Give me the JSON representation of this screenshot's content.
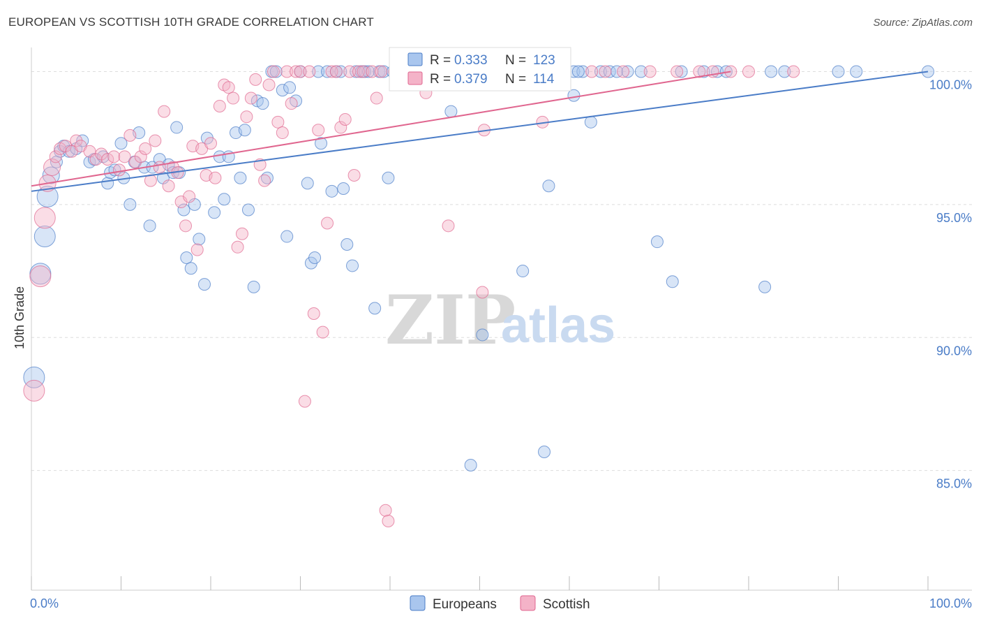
{
  "title": "EUROPEAN VS SCOTTISH 10TH GRADE CORRELATION CHART",
  "source": "Source: ZipAtlas.com",
  "watermark": {
    "zip": "ZIP",
    "atlas": "atlas"
  },
  "colors": {
    "europeans": "#4a7cc7",
    "europeans_fill": "#a9c6ee",
    "scottish": "#e0668f",
    "scottish_fill": "#f4b3c8",
    "grid": "#dddddd",
    "axis_text": "#4a7cc7"
  },
  "chart_data": {
    "type": "scatter",
    "xlabel": "",
    "ylabel": "10th Grade",
    "xlim": [
      0,
      100
    ],
    "ylim": [
      80.5,
      100.8
    ],
    "x_ticks": [
      {
        "value": 0,
        "label": "0.0%"
      },
      {
        "value": 100,
        "label": "100.0%"
      }
    ],
    "y_ticks": [
      {
        "value": 100,
        "label": "100.0%"
      },
      {
        "value": 95,
        "label": "95.0%"
      },
      {
        "value": 90,
        "label": "90.0%"
      },
      {
        "value": 85,
        "label": "85.0%"
      }
    ],
    "legend": {
      "placement": "top-center",
      "rows": [
        {
          "series": "Europeans",
          "r_label": "R =",
          "r_value": "0.333",
          "n_label": "N =",
          "n_value": "123"
        },
        {
          "series": "Scottish",
          "r_label": "R =",
          "r_value": "0.379",
          "n_label": "N =",
          "n_value": "114"
        }
      ]
    },
    "series": [
      {
        "name": "Europeans",
        "trend": {
          "x": [
            0,
            100
          ],
          "y": [
            95.5,
            100
          ]
        },
        "points": [
          [
            0.3,
            88.5,
            3
          ],
          [
            1.0,
            92.4,
            3
          ],
          [
            1.5,
            93.8,
            3
          ],
          [
            1.8,
            95.3,
            3
          ],
          [
            2.2,
            96.1,
            2
          ],
          [
            2.8,
            96.6,
            1
          ],
          [
            3.2,
            97.0,
            1
          ],
          [
            3.6,
            97.2,
            1
          ],
          [
            4.2,
            97.0,
            1
          ],
          [
            5.0,
            97.1,
            1
          ],
          [
            5.7,
            97.4,
            1
          ],
          [
            6.5,
            96.6,
            1
          ],
          [
            7.0,
            96.7,
            1
          ],
          [
            8.0,
            96.8,
            1
          ],
          [
            8.5,
            95.8,
            1
          ],
          [
            8.8,
            96.2,
            1
          ],
          [
            9.3,
            96.3,
            1
          ],
          [
            10.0,
            97.3,
            1
          ],
          [
            10.3,
            96.0,
            1
          ],
          [
            11.0,
            95.0,
            1
          ],
          [
            11.5,
            96.6,
            1
          ],
          [
            12.0,
            97.7,
            1
          ],
          [
            12.6,
            96.4,
            1
          ],
          [
            13.2,
            94.2,
            1
          ],
          [
            13.5,
            96.4,
            1
          ],
          [
            14.3,
            96.7,
            1
          ],
          [
            14.7,
            96.0,
            1
          ],
          [
            15.3,
            96.5,
            1
          ],
          [
            15.8,
            96.2,
            1
          ],
          [
            16.2,
            97.9,
            1
          ],
          [
            16.5,
            96.2,
            1
          ],
          [
            17.0,
            94.8,
            1
          ],
          [
            17.3,
            93.0,
            1
          ],
          [
            17.8,
            92.6,
            1
          ],
          [
            18.2,
            95.0,
            1
          ],
          [
            18.7,
            93.7,
            1
          ],
          [
            19.3,
            92.0,
            1
          ],
          [
            19.6,
            97.5,
            1
          ],
          [
            20.4,
            94.7,
            1
          ],
          [
            21.0,
            96.8,
            1
          ],
          [
            21.5,
            95.2,
            1
          ],
          [
            22.0,
            96.8,
            1
          ],
          [
            22.8,
            97.7,
            1
          ],
          [
            23.3,
            96.0,
            1
          ],
          [
            23.8,
            97.8,
            1
          ],
          [
            24.2,
            94.8,
            1
          ],
          [
            24.8,
            91.9,
            1
          ],
          [
            25.2,
            98.9,
            1
          ],
          [
            25.8,
            98.8,
            1
          ],
          [
            26.3,
            96.0,
            1
          ],
          [
            26.8,
            100.0,
            1
          ],
          [
            27.3,
            100.0,
            1
          ],
          [
            28.0,
            99.3,
            1
          ],
          [
            28.5,
            93.8,
            1
          ],
          [
            28.8,
            99.4,
            1
          ],
          [
            29.5,
            98.9,
            1
          ],
          [
            30.0,
            100.0,
            1
          ],
          [
            30.8,
            95.8,
            1
          ],
          [
            31.2,
            92.8,
            1
          ],
          [
            31.6,
            93.0,
            1
          ],
          [
            32.0,
            100.0,
            1
          ],
          [
            32.3,
            97.3,
            1
          ],
          [
            33.0,
            100.0,
            1
          ],
          [
            33.5,
            95.5,
            1
          ],
          [
            34.0,
            100.0,
            1
          ],
          [
            34.5,
            100.0,
            1
          ],
          [
            34.8,
            95.6,
            1
          ],
          [
            35.2,
            93.5,
            1
          ],
          [
            35.8,
            92.7,
            1
          ],
          [
            36.2,
            100.0,
            1
          ],
          [
            36.8,
            100.0,
            1
          ],
          [
            37.2,
            100.0,
            1
          ],
          [
            37.6,
            100.0,
            1
          ],
          [
            38.3,
            91.1,
            1
          ],
          [
            38.8,
            100.0,
            1
          ],
          [
            39.3,
            100.0,
            1
          ],
          [
            39.8,
            96.0,
            1
          ],
          [
            40.3,
            100.0,
            1
          ],
          [
            41.0,
            100.0,
            1
          ],
          [
            42.0,
            100.0,
            1
          ],
          [
            43.0,
            100.0,
            1
          ],
          [
            44.0,
            100.0,
            1
          ],
          [
            45.0,
            100.0,
            1
          ],
          [
            46.0,
            100.0,
            1
          ],
          [
            46.8,
            98.5,
            1
          ],
          [
            47.5,
            100.0,
            1
          ],
          [
            48.5,
            100.0,
            1
          ],
          [
            49.5,
            100.0,
            1
          ],
          [
            50.3,
            90.1,
            1
          ],
          [
            51.0,
            100.0,
            1
          ],
          [
            52.0,
            100.0,
            1
          ],
          [
            53.0,
            100.0,
            1
          ],
          [
            54.0,
            100.0,
            1
          ],
          [
            54.8,
            92.5,
            1
          ],
          [
            55.5,
            100.0,
            1
          ],
          [
            56.5,
            100.0,
            1
          ],
          [
            57.2,
            85.7,
            1
          ],
          [
            57.7,
            95.7,
            1
          ],
          [
            58.5,
            100.0,
            1
          ],
          [
            59.5,
            100.0,
            1
          ],
          [
            60.5,
            100.0,
            1
          ],
          [
            61.5,
            100.0,
            1
          ],
          [
            62.4,
            98.1,
            1
          ],
          [
            63.5,
            100.0,
            1
          ],
          [
            64.5,
            100.0,
            1
          ],
          [
            60.5,
            99.1,
            1
          ],
          [
            61.0,
            100.0,
            1
          ],
          [
            65.3,
            100.0,
            1
          ],
          [
            66.5,
            100.0,
            1
          ],
          [
            68.0,
            100.0,
            1
          ],
          [
            69.8,
            93.6,
            1
          ],
          [
            71.5,
            92.1,
            1
          ],
          [
            72.5,
            100.0,
            1
          ],
          [
            75.0,
            100.0,
            1
          ],
          [
            76.5,
            100.0,
            1
          ],
          [
            77.5,
            100.0,
            1
          ],
          [
            81.8,
            91.9,
            1
          ],
          [
            82.5,
            100.0,
            1
          ],
          [
            84.0,
            100.0,
            1
          ],
          [
            90.0,
            100.0,
            1
          ],
          [
            92.0,
            100.0,
            1
          ],
          [
            100.0,
            100.0,
            1
          ],
          [
            49.0,
            85.2,
            1
          ]
        ]
      },
      {
        "name": "Scottish",
        "trend": {
          "x": [
            0,
            78
          ],
          "y": [
            95.7,
            100
          ]
        },
        "points": [
          [
            0.3,
            88.0,
            3
          ],
          [
            1.0,
            92.3,
            3
          ],
          [
            1.5,
            94.5,
            3
          ],
          [
            1.8,
            95.8,
            2
          ],
          [
            2.3,
            96.4,
            2
          ],
          [
            2.7,
            96.8,
            1
          ],
          [
            3.2,
            97.1,
            1
          ],
          [
            3.8,
            97.2,
            1
          ],
          [
            4.5,
            97.0,
            1
          ],
          [
            5.0,
            97.4,
            1
          ],
          [
            5.5,
            97.2,
            1
          ],
          [
            6.5,
            97.0,
            1
          ],
          [
            7.2,
            96.7,
            1
          ],
          [
            7.8,
            96.9,
            1
          ],
          [
            8.5,
            96.7,
            1
          ],
          [
            9.2,
            96.8,
            1
          ],
          [
            9.8,
            96.3,
            1
          ],
          [
            10.4,
            96.8,
            1
          ],
          [
            11.0,
            97.6,
            1
          ],
          [
            11.6,
            96.6,
            1
          ],
          [
            12.2,
            96.8,
            1
          ],
          [
            12.7,
            97.1,
            1
          ],
          [
            13.3,
            95.9,
            1
          ],
          [
            13.8,
            97.4,
            1
          ],
          [
            14.3,
            96.4,
            1
          ],
          [
            14.8,
            98.5,
            1
          ],
          [
            15.3,
            95.7,
            1
          ],
          [
            15.8,
            96.4,
            1
          ],
          [
            16.3,
            96.2,
            1
          ],
          [
            16.7,
            95.1,
            1
          ],
          [
            17.2,
            94.2,
            1
          ],
          [
            17.6,
            95.3,
            1
          ],
          [
            18.0,
            97.2,
            1
          ],
          [
            18.5,
            93.3,
            1
          ],
          [
            19.0,
            97.1,
            1
          ],
          [
            19.5,
            96.1,
            1
          ],
          [
            20.0,
            97.3,
            1
          ],
          [
            20.5,
            96.0,
            1
          ],
          [
            21.0,
            98.7,
            1
          ],
          [
            21.5,
            99.5,
            1
          ],
          [
            22.0,
            99.4,
            1
          ],
          [
            22.5,
            99.0,
            1
          ],
          [
            23.0,
            93.4,
            1
          ],
          [
            23.5,
            93.9,
            1
          ],
          [
            24.0,
            98.3,
            1
          ],
          [
            24.5,
            99.0,
            1
          ],
          [
            25.0,
            99.7,
            1
          ],
          [
            25.5,
            96.5,
            1
          ],
          [
            26.0,
            95.9,
            1
          ],
          [
            26.5,
            99.5,
            1
          ],
          [
            27.0,
            100.0,
            1
          ],
          [
            27.5,
            98.1,
            1
          ],
          [
            28.0,
            97.7,
            1
          ],
          [
            28.5,
            100.0,
            1
          ],
          [
            29.0,
            98.8,
            1
          ],
          [
            29.5,
            100.0,
            1
          ],
          [
            30.0,
            100.0,
            1
          ],
          [
            30.5,
            87.6,
            1
          ],
          [
            31.0,
            100.0,
            1
          ],
          [
            31.5,
            90.9,
            1
          ],
          [
            32.0,
            97.8,
            1
          ],
          [
            32.5,
            90.2,
            1
          ],
          [
            33.0,
            94.3,
            1
          ],
          [
            33.5,
            100.0,
            1
          ],
          [
            34.0,
            100.0,
            1
          ],
          [
            34.5,
            97.9,
            1
          ],
          [
            35.0,
            98.2,
            1
          ],
          [
            35.5,
            100.0,
            1
          ],
          [
            36.0,
            96.1,
            1
          ],
          [
            36.5,
            100.0,
            1
          ],
          [
            37.0,
            100.0,
            1
          ],
          [
            38.0,
            100.0,
            1
          ],
          [
            38.5,
            99.0,
            1
          ],
          [
            39.0,
            100.0,
            1
          ],
          [
            39.5,
            83.5,
            1
          ],
          [
            39.8,
            83.1,
            1
          ],
          [
            40.5,
            100.0,
            1
          ],
          [
            41.5,
            100.0,
            1
          ],
          [
            42.5,
            100.0,
            1
          ],
          [
            43.5,
            100.0,
            1
          ],
          [
            44.5,
            100.0,
            1
          ],
          [
            45.5,
            100.0,
            1
          ],
          [
            46.5,
            94.2,
            1
          ],
          [
            47.5,
            100.0,
            1
          ],
          [
            48.5,
            100.0,
            1
          ],
          [
            49.5,
            100.0,
            1
          ],
          [
            50.5,
            97.8,
            1
          ],
          [
            51.5,
            100.0,
            1
          ],
          [
            52.5,
            100.0,
            1
          ],
          [
            53.5,
            100.0,
            1
          ],
          [
            54.5,
            100.0,
            1
          ],
          [
            55.5,
            100.0,
            1
          ],
          [
            56.5,
            100.0,
            1
          ],
          [
            57.5,
            100.0,
            1
          ],
          [
            58.5,
            100.0,
            1
          ],
          [
            59.5,
            100.0,
            1
          ],
          [
            50.3,
            91.7,
            1
          ],
          [
            57.0,
            98.1,
            1
          ],
          [
            62.5,
            100.0,
            1
          ],
          [
            64.0,
            100.0,
            1
          ],
          [
            66.0,
            100.0,
            1
          ],
          [
            69.0,
            100.0,
            1
          ],
          [
            72.0,
            100.0,
            1
          ],
          [
            74.5,
            100.0,
            1
          ],
          [
            76.0,
            100.0,
            1
          ],
          [
            78.0,
            100.0,
            1
          ],
          [
            80.0,
            100.0,
            1
          ],
          [
            85.0,
            100.0,
            1
          ],
          [
            44.0,
            99.2,
            1
          ]
        ]
      }
    ]
  },
  "bottom_legend": [
    {
      "key": "europeans",
      "label": "Europeans"
    },
    {
      "key": "scottish",
      "label": "Scottish"
    }
  ]
}
